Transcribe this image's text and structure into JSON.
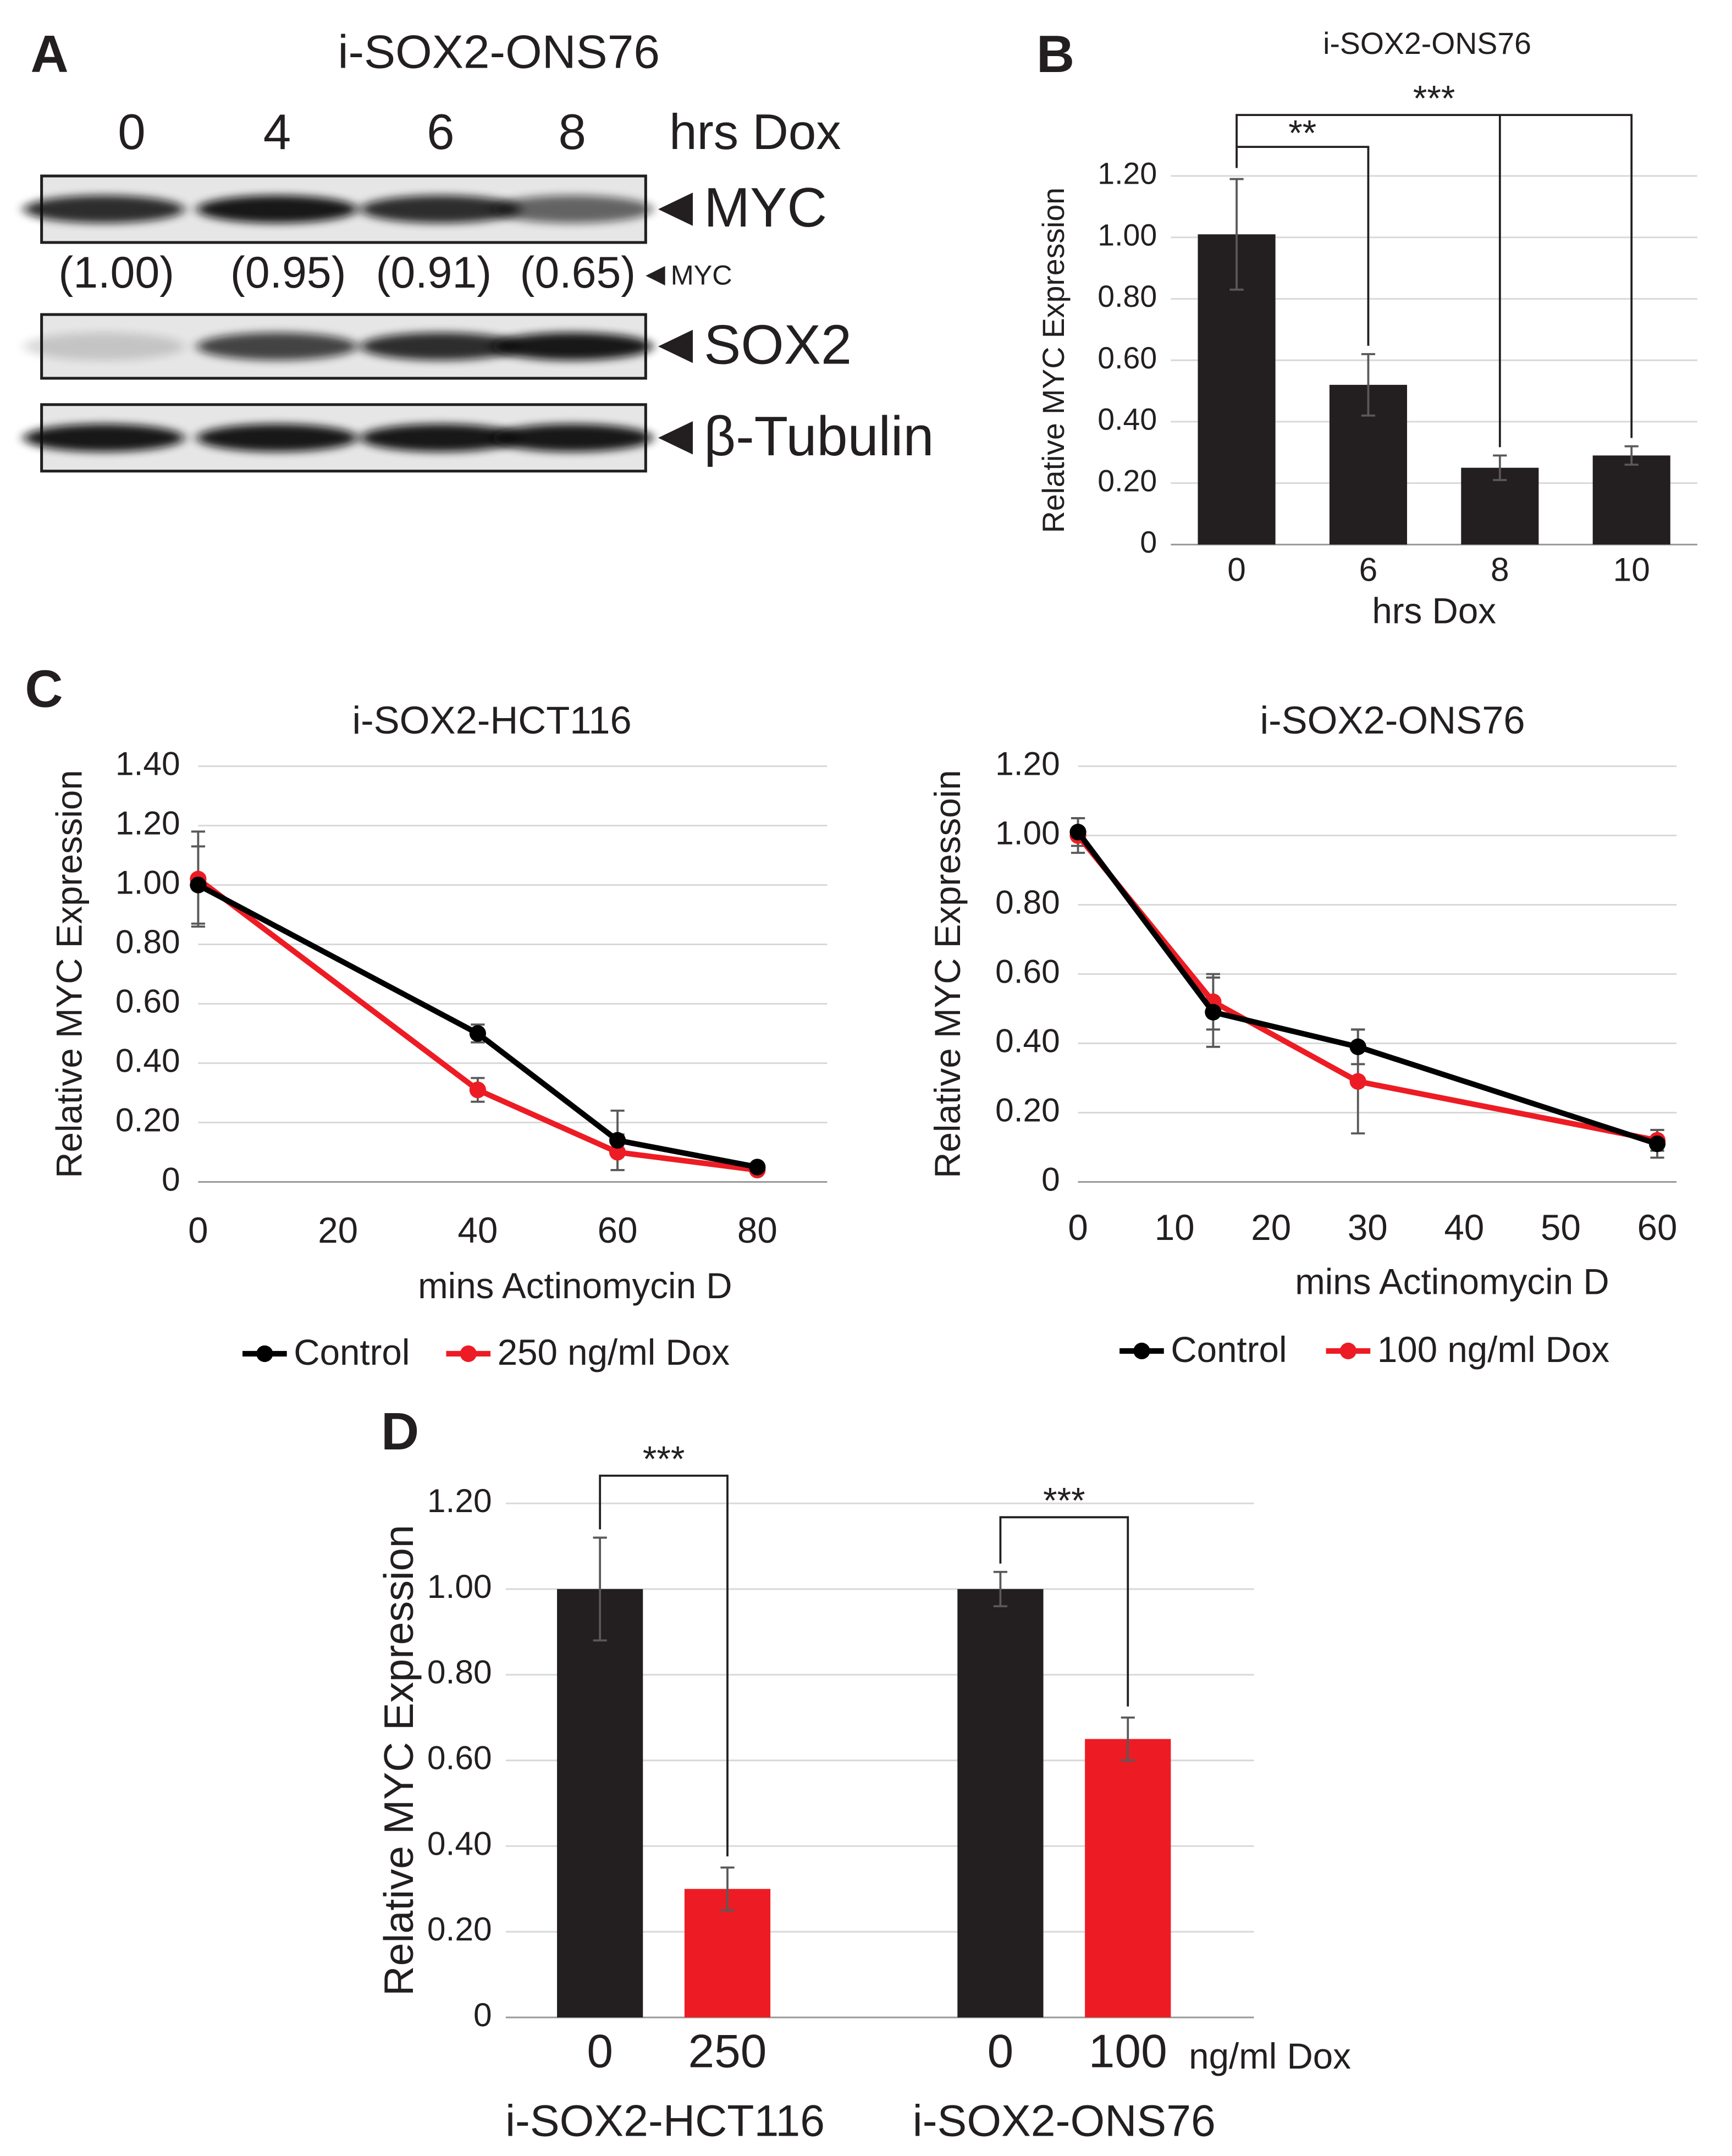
{
  "panel_labels": [
    "A",
    "B",
    "C",
    "D"
  ],
  "blot": {
    "title": "i-SOX2-ONS76",
    "lanes": [
      "0",
      "4",
      "6",
      "8"
    ],
    "lane_unit": "hrs Dox",
    "rows": [
      "MYC",
      "SOX2",
      "β-Tubulin"
    ],
    "quant_labels": [
      "(1.00)",
      "(0.95)",
      "(0.91)",
      "(0.65)"
    ],
    "quant_target": "MYC"
  },
  "chart_data": [
    {
      "type": "bar",
      "title": "i-SOX2-ONS76",
      "categories": [
        "0",
        "6",
        "8",
        "10"
      ],
      "values": [
        1.01,
        0.52,
        0.25,
        0.29
      ],
      "errors": [
        0.18,
        0.1,
        0.04,
        0.03
      ],
      "color": "#231f20",
      "ylim": [
        0,
        1.2
      ],
      "yticks": [
        0,
        {
          "value": 0.2,
          "label": "0.20"
        },
        {
          "value": 0.4,
          "label": "0.40"
        },
        {
          "value": 0.6,
          "label": "0.60"
        },
        {
          "value": 0.8,
          "label": "0.80"
        },
        {
          "value": 1.0,
          "label": "1.00"
        },
        {
          "value": 1.2,
          "label": "1.20"
        }
      ],
      "xlabel": "hrs Dox",
      "ylabel": "Relative MYC Expression",
      "annotations": [
        "**",
        "***"
      ],
      "grid": true
    },
    {
      "type": "line",
      "title": "i-SOX2-HCT116",
      "x": [
        0,
        40,
        60,
        80
      ],
      "series": [
        {
          "name": "Control",
          "color": "#000000",
          "values": [
            1.0,
            0.5,
            0.14,
            0.05
          ],
          "errors": [
            0.13,
            0.03,
            0.1,
            0.01
          ]
        },
        {
          "name": "250 ng/ml Dox",
          "color": "#ed1c24",
          "values": [
            1.02,
            0.31,
            0.1,
            0.04
          ],
          "errors": [
            0.16,
            0.04,
            0.06,
            0.01
          ]
        }
      ],
      "xlim": [
        0,
        90
      ],
      "xticks": [
        0,
        20,
        40,
        60,
        80
      ],
      "ylim": [
        0,
        1.4
      ],
      "yticks": [
        0,
        {
          "value": 0.2,
          "label": "0.20"
        },
        {
          "value": 0.4,
          "label": "0.40"
        },
        {
          "value": 0.6,
          "label": "0.60"
        },
        {
          "value": 0.8,
          "label": "0.80"
        },
        {
          "value": 1.0,
          "label": "1.00"
        },
        {
          "value": 1.2,
          "label": "1.20"
        },
        {
          "value": 1.4,
          "label": "1.40"
        }
      ],
      "xlabel": "mins Actinomycin D",
      "ylabel": "Relative MYC Expression",
      "grid": true,
      "legend": "bottom"
    },
    {
      "type": "line",
      "title": "i-SOX2-ONS76",
      "x": [
        0,
        14,
        29,
        60
      ],
      "series": [
        {
          "name": "Control",
          "color": "#000000",
          "values": [
            1.01,
            0.49,
            0.39,
            0.11
          ],
          "errors": [
            0.04,
            0.1,
            0.05,
            0.04
          ]
        },
        {
          "name": "100 ng/ml Dox",
          "color": "#ed1c24",
          "values": [
            1.0,
            0.52,
            0.29,
            0.12
          ],
          "errors": [
            0.05,
            0.08,
            0.15,
            0.03
          ]
        }
      ],
      "xlim": [
        0,
        62
      ],
      "xticks": [
        0,
        10,
        20,
        30,
        40,
        50,
        60
      ],
      "ylim": [
        0,
        1.2
      ],
      "yticks": [
        0,
        {
          "value": 0.2,
          "label": "0.20"
        },
        {
          "value": 0.4,
          "label": "0.40"
        },
        {
          "value": 0.6,
          "label": "0.60"
        },
        {
          "value": 0.8,
          "label": "0.80"
        },
        {
          "value": 1.0,
          "label": "1.00"
        },
        {
          "value": 1.2,
          "label": "1.20"
        }
      ],
      "xlabel": "mins Actinomycin D",
      "ylabel": "Relative MYC Expressoin",
      "grid": true,
      "legend": "bottom"
    },
    {
      "type": "bar",
      "categories": [
        "0",
        "250",
        "0",
        "100"
      ],
      "groups": [
        "i-SOX2-HCT116",
        "i-SOX2-ONS76"
      ],
      "unit": "ng/ml Dox",
      "values": [
        1.0,
        0.3,
        1.0,
        0.65
      ],
      "errors": [
        0.12,
        0.05,
        0.04,
        0.05
      ],
      "colors": [
        "#231f20",
        "#ed1c24",
        "#231f20",
        "#ed1c24"
      ],
      "ylim": [
        0,
        1.2
      ],
      "yticks": [
        0,
        {
          "value": 0.2,
          "label": "0.20"
        },
        {
          "value": 0.4,
          "label": "0.40"
        },
        {
          "value": 0.6,
          "label": "0.60"
        },
        {
          "value": 0.8,
          "label": "0.80"
        },
        {
          "value": 1.0,
          "label": "1.00"
        },
        {
          "value": 1.2,
          "label": "1.20"
        }
      ],
      "ylabel": "Relative MYC Expression",
      "annotations": [
        "***",
        "***"
      ],
      "grid": true
    }
  ]
}
